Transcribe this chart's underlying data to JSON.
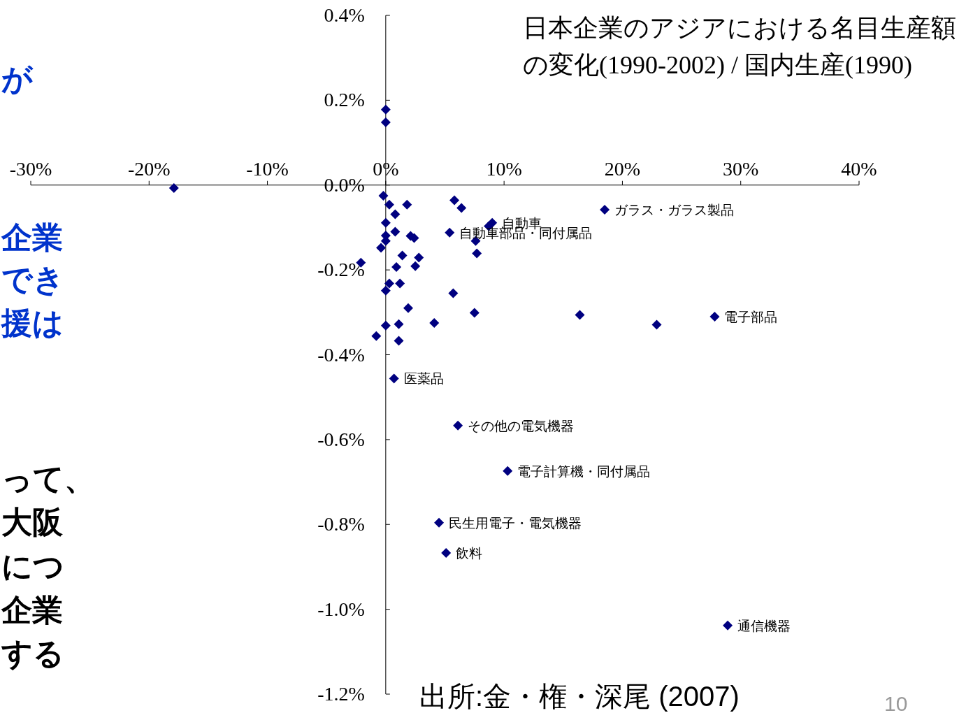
{
  "chart_data": {
    "type": "scatter",
    "title": "日本企業のアジアにおける名目生産額の変化(1990-2002)  / 国内生産(1990)",
    "xlim": [
      -30,
      40
    ],
    "ylim": [
      -1.2,
      0.4
    ],
    "xticks": [
      {
        "value": -30,
        "label": "-30%"
      },
      {
        "value": -20,
        "label": "-20%"
      },
      {
        "value": -10,
        "label": "-10%"
      },
      {
        "value": 0,
        "label": "0%"
      },
      {
        "value": 10,
        "label": "10%"
      },
      {
        "value": 20,
        "label": "20%"
      },
      {
        "value": 30,
        "label": "30%"
      },
      {
        "value": 40,
        "label": "40%"
      }
    ],
    "yticks": [
      {
        "value": 0.4,
        "label": "0.4%"
      },
      {
        "value": 0.2,
        "label": "0.2%"
      },
      {
        "value": 0,
        "label": "0.0%"
      },
      {
        "value": -0.2,
        "label": "-0.2%"
      },
      {
        "value": -0.4,
        "label": "-0.4%"
      },
      {
        "value": -0.6,
        "label": "-0.6%"
      },
      {
        "value": -0.8,
        "label": "-0.8%"
      },
      {
        "value": -1.0,
        "label": "-1.0%"
      },
      {
        "value": -1.2,
        "label": "-1.2%"
      }
    ],
    "marker": "diamond",
    "series": [
      {
        "color": "#000080",
        "x": [
          -17.9,
          0,
          0,
          -0.2,
          0.3,
          1.8,
          5.8,
          6.4,
          18.5,
          0.8,
          0,
          9.0,
          8.7,
          5.4,
          0.8,
          0,
          0,
          2.1,
          2.4,
          7.6,
          -0.4,
          7.7,
          1.4,
          2.8,
          -2.1,
          0.9,
          2.5,
          1.2,
          0.3,
          0,
          5.7,
          1.9,
          7.5,
          16.4,
          4.1,
          22.9,
          27.8,
          1.1,
          0,
          -0.8,
          1.1,
          0.7,
          6.1,
          10.3,
          4.5,
          5.1,
          28.9
        ],
        "values": [
          -0.007,
          0.178,
          0.148,
          -0.025,
          -0.046,
          -0.046,
          -0.036,
          -0.054,
          -0.058,
          -0.069,
          -0.089,
          -0.089,
          -0.097,
          -0.112,
          -0.11,
          -0.119,
          -0.132,
          -0.12,
          -0.125,
          -0.132,
          -0.148,
          -0.161,
          -0.166,
          -0.171,
          -0.183,
          -0.193,
          -0.191,
          -0.232,
          -0.232,
          -0.249,
          -0.255,
          -0.29,
          -0.301,
          -0.306,
          -0.325,
          -0.329,
          -0.31,
          -0.328,
          -0.331,
          -0.356,
          -0.367,
          -0.456,
          -0.567,
          -0.674,
          -0.796,
          -0.867,
          -1.038
        ]
      }
    ],
    "annotations": [
      {
        "text": "ガラス・ガラス製品",
        "x": 18.5,
        "y": -0.058
      },
      {
        "text": "自動車",
        "x": 9.0,
        "y": -0.089
      },
      {
        "text": "自動車部品・同付属品",
        "x": 5.4,
        "y": -0.112
      },
      {
        "text": "電子部品",
        "x": 27.8,
        "y": -0.31
      },
      {
        "text": "医薬品",
        "x": 0.7,
        "y": -0.456
      },
      {
        "text": "その他の電気機器",
        "x": 6.1,
        "y": -0.567
      },
      {
        "text": "電子計算機・同付属品",
        "x": 10.3,
        "y": -0.674
      },
      {
        "text": "民生用電子・電気機器",
        "x": 4.5,
        "y": -0.796
      },
      {
        "text": "飲料",
        "x": 5.1,
        "y": -0.867
      },
      {
        "text": "通信機器",
        "x": 28.9,
        "y": -1.038
      },
      "出所:金・権・深尾 (2007)",
      "10",
      "が",
      "企業",
      "でき",
      "援は",
      "って、",
      "大阪",
      "につ",
      "企業",
      "する"
    ]
  }
}
